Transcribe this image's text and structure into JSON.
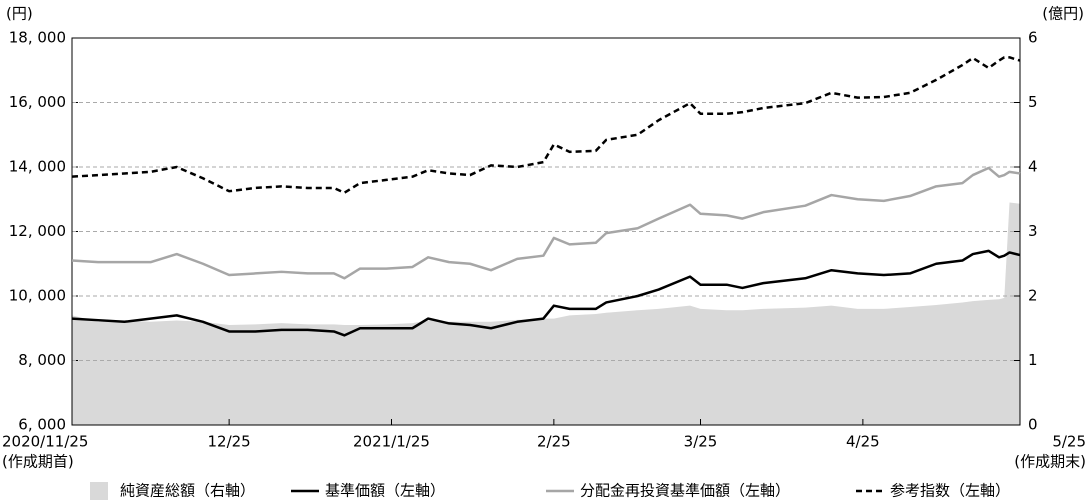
{
  "chart_data": {
    "type": "line",
    "y_axis_label": "(円)",
    "y2_axis_label": "(億円)",
    "x_start_note": "(作成期首)",
    "x_end_note": "(作成期末)",
    "x": [
      0,
      5,
      10,
      15,
      20,
      25,
      30,
      35,
      40,
      45,
      50,
      52,
      55,
      60,
      65,
      68,
      72,
      76,
      80,
      85,
      90,
      92,
      95,
      100,
      102,
      108,
      112,
      118,
      120,
      125,
      128,
      132,
      140,
      145,
      150,
      155,
      160,
      165,
      170,
      172,
      175,
      177,
      178,
      179,
      181
    ],
    "xlim": [
      0,
      181
    ],
    "xticks": [
      {
        "value": 0,
        "label": "2020/11/25"
      },
      {
        "value": 30,
        "label": "12/25"
      },
      {
        "value": 61,
        "label": "2021/1/25"
      },
      {
        "value": 92,
        "label": "2/25"
      },
      {
        "value": 120,
        "label": "3/25"
      },
      {
        "value": 151,
        "label": "4/25"
      },
      {
        "value": 181,
        "label": "5/25"
      }
    ],
    "ylim": [
      6000,
      18000
    ],
    "yticks": [
      {
        "value": 6000,
        "label": "6, 000"
      },
      {
        "value": 8000,
        "label": "8, 000"
      },
      {
        "value": 10000,
        "label": "10, 000"
      },
      {
        "value": 12000,
        "label": "12, 000"
      },
      {
        "value": 14000,
        "label": "14, 000"
      },
      {
        "value": 16000,
        "label": "16, 000"
      },
      {
        "value": 18000,
        "label": "18, 000"
      }
    ],
    "y2lim": [
      0,
      6
    ],
    "y2ticks": [
      0,
      1,
      2,
      3,
      4,
      5,
      6
    ],
    "grid": true,
    "legend": "bottom",
    "series": [
      {
        "name": "純資産総額（右軸）",
        "color": "#d9d9d9",
        "style": "area",
        "axis": "y2",
        "values": [
          1.7,
          1.6,
          1.62,
          1.6,
          1.62,
          1.6,
          1.55,
          1.56,
          1.58,
          1.56,
          1.56,
          1.55,
          1.55,
          1.56,
          1.58,
          1.62,
          1.6,
          1.6,
          1.6,
          1.63,
          1.65,
          1.65,
          1.7,
          1.72,
          1.74,
          1.78,
          1.8,
          1.85,
          1.8,
          1.78,
          1.78,
          1.8,
          1.82,
          1.85,
          1.8,
          1.8,
          1.83,
          1.86,
          1.9,
          1.92,
          1.94,
          1.95,
          1.97,
          3.45,
          3.43
        ]
      },
      {
        "name": "基準価額（左軸）",
        "color": "#000000",
        "style": "solid",
        "values": [
          9300,
          9250,
          9200,
          9300,
          9400,
          9200,
          8900,
          8900,
          8950,
          8950,
          8900,
          8780,
          9000,
          9000,
          9000,
          9300,
          9150,
          9100,
          9000,
          9200,
          9300,
          9700,
          9600,
          9600,
          9800,
          10000,
          10200,
          10600,
          10350,
          10350,
          10250,
          10400,
          10550,
          10800,
          10700,
          10650,
          10700,
          11000,
          11100,
          11300,
          11400,
          11200,
          11250,
          11350,
          11270
        ]
      },
      {
        "name": "分配金再投資基準価額（左軸）",
        "color": "#a6a6a6",
        "style": "solid",
        "values": [
          11100,
          11050,
          11050,
          11050,
          11300,
          11000,
          10650,
          10700,
          10750,
          10700,
          10700,
          10550,
          10850,
          10850,
          10900,
          11200,
          11050,
          11000,
          10800,
          11150,
          11250,
          11800,
          11600,
          11650,
          11950,
          12100,
          12400,
          12830,
          12550,
          12500,
          12400,
          12600,
          12800,
          13130,
          13000,
          12950,
          13100,
          13400,
          13500,
          13750,
          13970,
          13700,
          13750,
          13850,
          13800
        ]
      },
      {
        "name": "参考指数（左軸）",
        "color": "#000000",
        "style": "dashed",
        "values": [
          13700,
          13750,
          13800,
          13850,
          14000,
          13650,
          13250,
          13350,
          13400,
          13350,
          13350,
          13200,
          13500,
          13600,
          13700,
          13900,
          13800,
          13750,
          14050,
          14000,
          14150,
          14700,
          14470,
          14500,
          14840,
          15000,
          15450,
          15980,
          15650,
          15650,
          15700,
          15830,
          15980,
          16300,
          16150,
          16170,
          16300,
          16700,
          17160,
          17380,
          17070,
          17300,
          17400,
          17400,
          17300
        ]
      }
    ]
  }
}
